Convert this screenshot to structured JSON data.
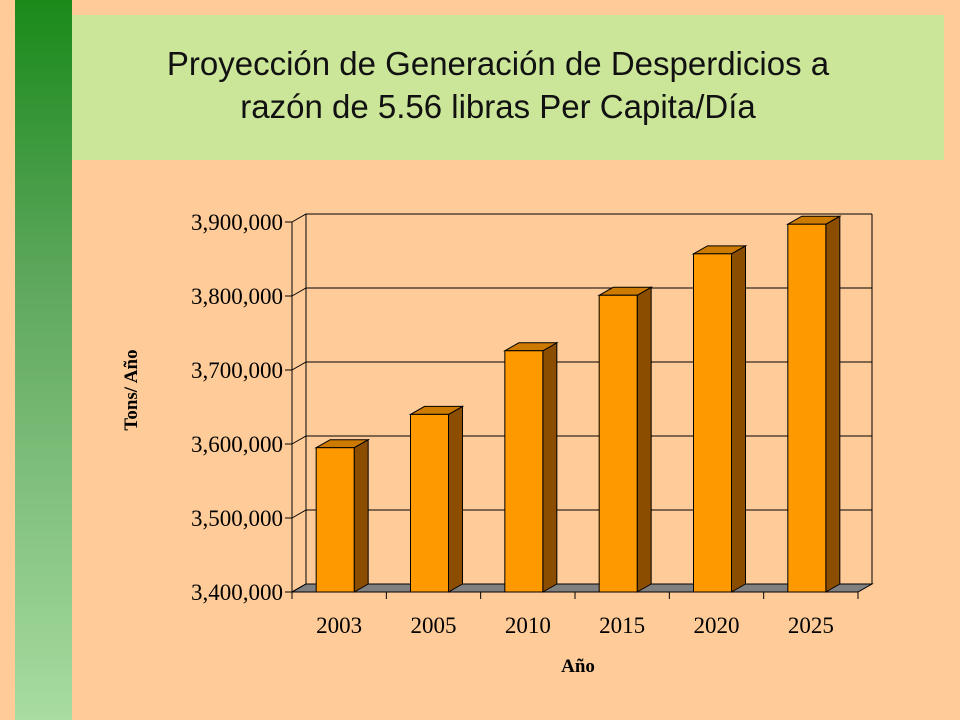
{
  "slide": {
    "title": "Proyección de Generación de Desperdicios a razón de 5.56 libras Per Capita/Día",
    "colors": {
      "background": "#FFCC99",
      "title_box": "#CCE699",
      "side_bar_top": "#1A8A1A",
      "side_bar_bottom": "#A8DCA0"
    }
  },
  "chart_data": {
    "type": "bar",
    "title": "",
    "xlabel": "Año",
    "ylabel": "Tons/ Año",
    "categories": [
      "2003",
      "2005",
      "2010",
      "2015",
      "2020",
      "2025"
    ],
    "values": [
      3595000,
      3640000,
      3726000,
      3801000,
      3857000,
      3897000
    ],
    "ylim": [
      3400000,
      3900000
    ],
    "yticks": [
      3400000,
      3500000,
      3600000,
      3700000,
      3800000,
      3900000
    ],
    "ytick_labels": [
      "3,400,000",
      "3,500,000",
      "3,600,000",
      "3,700,000",
      "3,800,000",
      "3,900,000"
    ],
    "grid": true,
    "style": "3d",
    "colors": {
      "bar_front": "#FF9900",
      "bar_side": "#8B4D00",
      "floor": "#808080",
      "plot_bg": "#FFCC99"
    }
  }
}
